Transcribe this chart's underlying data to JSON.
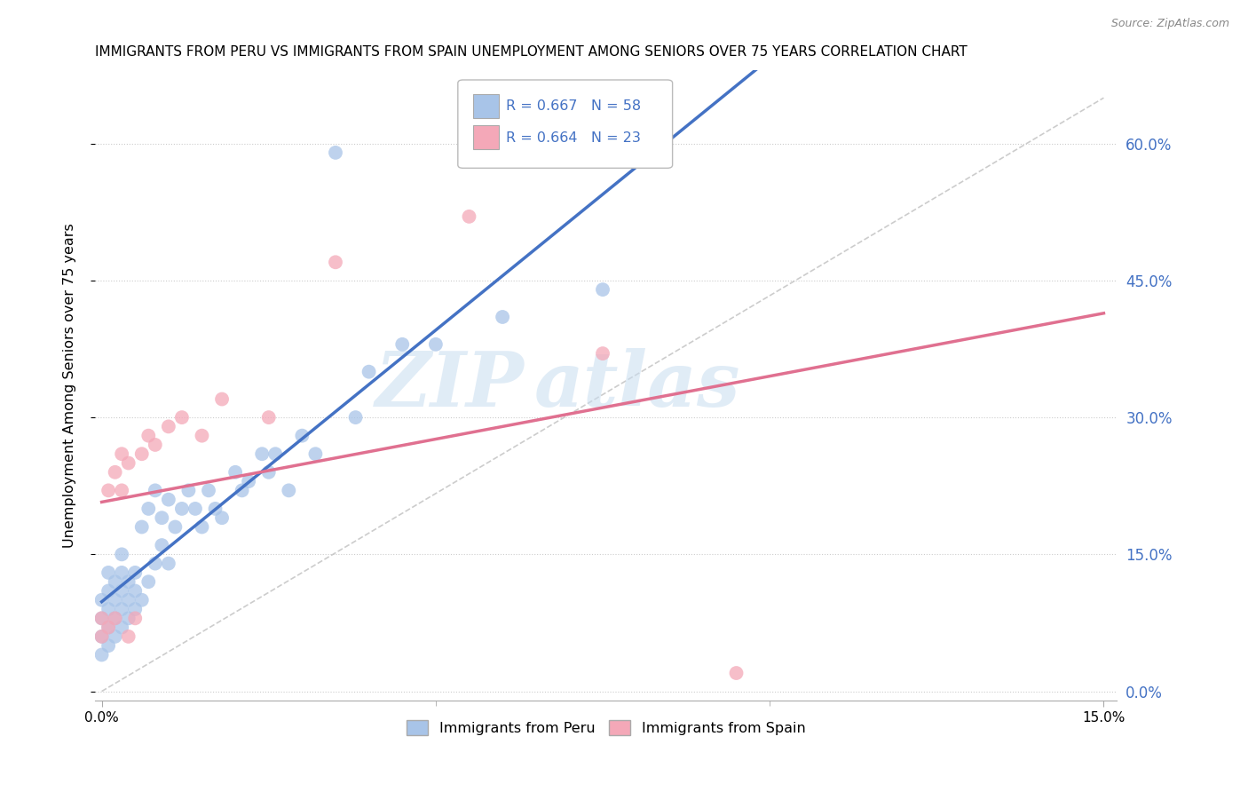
{
  "title": "IMMIGRANTS FROM PERU VS IMMIGRANTS FROM SPAIN UNEMPLOYMENT AMONG SENIORS OVER 75 YEARS CORRELATION CHART",
  "source": "Source: ZipAtlas.com",
  "ylabel_label": "Unemployment Among Seniors over 75 years",
  "legend_peru": "Immigrants from Peru",
  "legend_spain": "Immigrants from Spain",
  "R_peru": 0.667,
  "N_peru": 58,
  "R_spain": 0.664,
  "N_spain": 23,
  "xmin": 0.0,
  "xmax": 0.15,
  "ymin": 0.0,
  "ymax": 0.65,
  "color_peru": "#a8c4e8",
  "color_spain": "#f4a8b8",
  "line_color_peru": "#4472c4",
  "line_color_spain": "#e07090",
  "watermark_zip": "ZIP",
  "watermark_atlas": "atlas",
  "peru_x": [
    0.0,
    0.0,
    0.0,
    0.0,
    0.001,
    0.001,
    0.001,
    0.001,
    0.001,
    0.002,
    0.002,
    0.002,
    0.002,
    0.003,
    0.003,
    0.003,
    0.003,
    0.003,
    0.004,
    0.004,
    0.004,
    0.005,
    0.005,
    0.005,
    0.006,
    0.006,
    0.007,
    0.007,
    0.008,
    0.008,
    0.009,
    0.009,
    0.01,
    0.01,
    0.011,
    0.012,
    0.013,
    0.014,
    0.015,
    0.016,
    0.017,
    0.018,
    0.02,
    0.021,
    0.022,
    0.024,
    0.025,
    0.026,
    0.028,
    0.03,
    0.032,
    0.035,
    0.038,
    0.04,
    0.045,
    0.05,
    0.06,
    0.075
  ],
  "peru_y": [
    0.04,
    0.06,
    0.08,
    0.1,
    0.05,
    0.07,
    0.09,
    0.11,
    0.13,
    0.06,
    0.08,
    0.1,
    0.12,
    0.07,
    0.09,
    0.11,
    0.13,
    0.15,
    0.08,
    0.1,
    0.12,
    0.09,
    0.11,
    0.13,
    0.1,
    0.18,
    0.12,
    0.2,
    0.14,
    0.22,
    0.16,
    0.19,
    0.14,
    0.21,
    0.18,
    0.2,
    0.22,
    0.2,
    0.18,
    0.22,
    0.2,
    0.19,
    0.24,
    0.22,
    0.23,
    0.26,
    0.24,
    0.26,
    0.22,
    0.28,
    0.26,
    0.59,
    0.3,
    0.35,
    0.38,
    0.38,
    0.41,
    0.44
  ],
  "spain_x": [
    0.0,
    0.0,
    0.001,
    0.001,
    0.002,
    0.002,
    0.003,
    0.003,
    0.004,
    0.004,
    0.005,
    0.006,
    0.007,
    0.008,
    0.01,
    0.012,
    0.015,
    0.018,
    0.025,
    0.035,
    0.055,
    0.075,
    0.095
  ],
  "spain_y": [
    0.06,
    0.08,
    0.07,
    0.22,
    0.08,
    0.24,
    0.22,
    0.26,
    0.06,
    0.25,
    0.08,
    0.26,
    0.28,
    0.27,
    0.29,
    0.3,
    0.28,
    0.32,
    0.3,
    0.47,
    0.52,
    0.37,
    0.02
  ]
}
